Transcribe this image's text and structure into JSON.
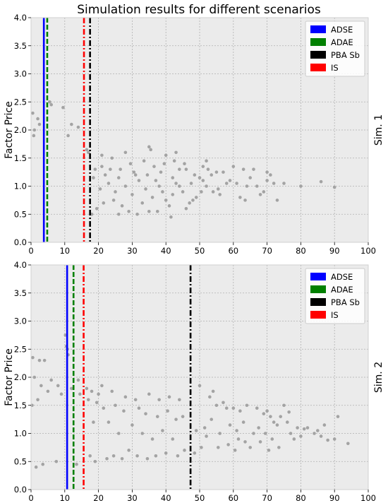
{
  "figure": {
    "title": "Simulation results for different scenarios",
    "background_color": "#ffffff",
    "axes_background_color": "#ebebeb",
    "grid_color": "#b0b0b0",
    "point_color": "#a3a3a3"
  },
  "chart_data": [
    {
      "type": "scatter",
      "side_label": "Sim. 1",
      "xlabel": "",
      "ylabel": "Factor Price",
      "xlim": [
        0,
        100
      ],
      "ylim": [
        0,
        4.0
      ],
      "xticks": [
        0,
        10,
        20,
        30,
        40,
        50,
        60,
        70,
        80,
        90,
        100
      ],
      "yticks": [
        0.0,
        0.5,
        1.0,
        1.5,
        2.0,
        2.5,
        3.0,
        3.5,
        4.0
      ],
      "grid": true,
      "legend_position": "top-right",
      "vlines": [
        {
          "name": "ADSE",
          "x": 3.8,
          "color": "#0000ff",
          "style": "solid"
        },
        {
          "name": "ADAE",
          "x": 4.8,
          "color": "#008000",
          "style": "dashed"
        },
        {
          "name": "PBA Sb",
          "x": 17.5,
          "color": "#000000",
          "style": "dashdot"
        },
        {
          "name": "IS",
          "x": 15.7,
          "color": "#ff0000",
          "style": "dashdot"
        }
      ],
      "legend_order": [
        "ADSE",
        "ADAE",
        "PBA Sb",
        "IS"
      ],
      "points": [
        [
          0.5,
          2.3
        ],
        [
          1.0,
          2.0
        ],
        [
          0.8,
          1.9
        ],
        [
          2.0,
          2.2
        ],
        [
          2.5,
          2.1
        ],
        [
          6.0,
          2.45
        ],
        [
          5.5,
          2.5
        ],
        [
          9.5,
          2.4
        ],
        [
          12.0,
          2.1
        ],
        [
          11.0,
          1.9
        ],
        [
          14.0,
          2.05
        ],
        [
          16.5,
          1.65
        ],
        [
          17.0,
          1.6
        ],
        [
          21.0,
          1.55
        ],
        [
          24.0,
          1.5
        ],
        [
          28.0,
          1.6
        ],
        [
          35.0,
          1.7
        ],
        [
          35.5,
          1.65
        ],
        [
          40.0,
          1.55
        ],
        [
          43.0,
          1.6
        ],
        [
          44.0,
          1.3
        ],
        [
          46.0,
          1.3
        ],
        [
          51.0,
          1.35
        ],
        [
          52.0,
          1.45
        ],
        [
          52.5,
          1.3
        ],
        [
          55.0,
          1.25
        ],
        [
          59.0,
          1.1
        ],
        [
          60.0,
          1.35
        ],
        [
          63.0,
          1.3
        ],
        [
          66.0,
          1.3
        ],
        [
          70.0,
          1.25
        ],
        [
          71.0,
          1.2
        ],
        [
          70.0,
          1.1
        ],
        [
          72.0,
          1.05
        ],
        [
          73.0,
          0.75
        ],
        [
          69.0,
          0.9
        ],
        [
          68.0,
          0.85
        ],
        [
          67.0,
          1.0
        ],
        [
          64.0,
          1.0
        ],
        [
          62.0,
          0.8
        ],
        [
          61.0,
          1.05
        ],
        [
          58.0,
          1.05
        ],
        [
          56.0,
          0.85
        ],
        [
          55.5,
          0.95
        ],
        [
          54.0,
          0.9
        ],
        [
          52.0,
          1.0
        ],
        [
          51.0,
          1.1
        ],
        [
          50.0,
          1.15
        ],
        [
          49.0,
          0.8
        ],
        [
          48.0,
          0.75
        ],
        [
          47.0,
          0.7
        ],
        [
          46.0,
          0.6
        ],
        [
          45.0,
          0.9
        ],
        [
          44.0,
          1.0
        ],
        [
          43.0,
          1.05
        ],
        [
          42.0,
          0.85
        ],
        [
          41.0,
          0.65
        ],
        [
          40.0,
          0.75
        ],
        [
          39.0,
          0.9
        ],
        [
          38.0,
          1.0
        ],
        [
          37.0,
          1.1
        ],
        [
          36.0,
          0.8
        ],
        [
          35.0,
          0.55
        ],
        [
          34.0,
          0.95
        ],
        [
          33.0,
          0.7
        ],
        [
          32.0,
          1.1
        ],
        [
          31.0,
          1.2
        ],
        [
          30.0,
          0.85
        ],
        [
          29.0,
          0.55
        ],
        [
          28.0,
          1.0
        ],
        [
          27.0,
          0.65
        ],
        [
          26.0,
          1.15
        ],
        [
          25.0,
          0.9
        ],
        [
          24.5,
          0.75
        ],
        [
          23.0,
          1.05
        ],
        [
          22.0,
          1.2
        ],
        [
          21.5,
          0.7
        ],
        [
          20.5,
          0.95
        ],
        [
          19.5,
          0.6
        ],
        [
          19.0,
          1.3
        ],
        [
          18.5,
          1.15
        ],
        [
          18.0,
          0.5
        ],
        [
          21.0,
          1.35
        ],
        [
          23.5,
          1.3
        ],
        [
          26.5,
          1.3
        ],
        [
          29.5,
          1.4
        ],
        [
          33.5,
          1.45
        ],
        [
          36.5,
          1.35
        ],
        [
          39.5,
          1.4
        ],
        [
          42.5,
          1.45
        ],
        [
          45.5,
          1.4
        ],
        [
          48.5,
          1.2
        ],
        [
          53.5,
          1.2
        ],
        [
          57.0,
          1.25
        ],
        [
          63.5,
          0.75
        ],
        [
          65.0,
          1.15
        ],
        [
          75.0,
          1.05
        ],
        [
          80.0,
          1.0
        ],
        [
          86.0,
          1.08
        ],
        [
          90.0,
          0.98
        ],
        [
          41.5,
          0.45
        ],
        [
          37.5,
          0.55
        ],
        [
          31.5,
          0.5
        ],
        [
          26.0,
          0.5
        ],
        [
          30.5,
          1.25
        ],
        [
          34.5,
          1.2
        ],
        [
          38.5,
          1.25
        ],
        [
          42.0,
          1.15
        ],
        [
          47.5,
          1.05
        ],
        [
          50.5,
          0.9
        ]
      ]
    },
    {
      "type": "scatter",
      "side_label": "Sim. 2",
      "xlabel": "",
      "ylabel": "Factor Price",
      "xlim": [
        0,
        100
      ],
      "ylim": [
        0,
        4.0
      ],
      "xticks": [
        0,
        10,
        20,
        30,
        40,
        50,
        60,
        70,
        80,
        90,
        100
      ],
      "yticks": [
        0.0,
        0.5,
        1.0,
        1.5,
        2.0,
        2.5,
        3.0,
        3.5,
        4.0
      ],
      "grid": true,
      "legend_position": "top-right",
      "vlines": [
        {
          "name": "ADSE",
          "x": 10.7,
          "color": "#0000ff",
          "style": "solid"
        },
        {
          "name": "ADAE",
          "x": 12.6,
          "color": "#008000",
          "style": "dashed"
        },
        {
          "name": "PBA Sb",
          "x": 47.3,
          "color": "#000000",
          "style": "dashdot"
        },
        {
          "name": "IS",
          "x": 15.6,
          "color": "#ff0000",
          "style": "dashdot"
        }
      ],
      "legend_order": [
        "ADSE",
        "ADAE",
        "PBA Sb",
        "IS"
      ],
      "points": [
        [
          10.2,
          2.75
        ],
        [
          10.5,
          2.55
        ],
        [
          10.8,
          2.5
        ],
        [
          11.0,
          2.4
        ],
        [
          0.5,
          2.35
        ],
        [
          2.5,
          2.3
        ],
        [
          4.0,
          2.3
        ],
        [
          1.0,
          2.0
        ],
        [
          6.0,
          1.95
        ],
        [
          3.0,
          1.85
        ],
        [
          8.0,
          1.85
        ],
        [
          14.0,
          1.95
        ],
        [
          16.5,
          1.8
        ],
        [
          18.0,
          1.75
        ],
        [
          20.0,
          1.7
        ],
        [
          21.0,
          1.85
        ],
        [
          24.0,
          1.75
        ],
        [
          28.0,
          1.65
        ],
        [
          31.0,
          1.6
        ],
        [
          35.0,
          1.7
        ],
        [
          38.0,
          1.6
        ],
        [
          41.0,
          1.65
        ],
        [
          44.0,
          1.6
        ],
        [
          50.0,
          1.85
        ],
        [
          53.0,
          1.65
        ],
        [
          54.0,
          1.75
        ],
        [
          55.0,
          1.5
        ],
        [
          57.0,
          1.55
        ],
        [
          58.0,
          1.45
        ],
        [
          60.0,
          1.45
        ],
        [
          62.0,
          1.4
        ],
        [
          64.0,
          1.5
        ],
        [
          67.0,
          1.45
        ],
        [
          69.0,
          1.35
        ],
        [
          70.0,
          1.4
        ],
        [
          71.0,
          1.3
        ],
        [
          72.0,
          1.2
        ],
        [
          73.0,
          1.15
        ],
        [
          74.0,
          1.3
        ],
        [
          75.0,
          1.5
        ],
        [
          76.0,
          1.2
        ],
        [
          77.0,
          1.0
        ],
        [
          78.0,
          0.9
        ],
        [
          79.0,
          1.1
        ],
        [
          80.0,
          0.95
        ],
        [
          82.0,
          1.1
        ],
        [
          84.0,
          1.0
        ],
        [
          85.0,
          1.05
        ],
        [
          86.0,
          0.95
        ],
        [
          87.0,
          1.15
        ],
        [
          91.0,
          1.3
        ],
        [
          94.0,
          0.82
        ],
        [
          90.0,
          0.9
        ],
        [
          88.0,
          0.88
        ],
        [
          81.0,
          1.08
        ],
        [
          76.5,
          1.38
        ],
        [
          73.5,
          0.75
        ],
        [
          71.5,
          0.9
        ],
        [
          70.5,
          0.7
        ],
        [
          69.5,
          1.0
        ],
        [
          68.0,
          0.85
        ],
        [
          67.5,
          1.1
        ],
        [
          66.0,
          1.0
        ],
        [
          65.0,
          0.75
        ],
        [
          63.5,
          0.85
        ],
        [
          63.0,
          1.2
        ],
        [
          61.5,
          0.9
        ],
        [
          61.0,
          1.05
        ],
        [
          60.5,
          0.7
        ],
        [
          59.0,
          1.15
        ],
        [
          58.5,
          0.8
        ],
        [
          56.0,
          1.0
        ],
        [
          55.5,
          0.75
        ],
        [
          53.5,
          1.25
        ],
        [
          52.0,
          0.95
        ],
        [
          51.5,
          1.1
        ],
        [
          50.5,
          0.75
        ],
        [
          49.0,
          1.05
        ],
        [
          48.5,
          0.65
        ],
        [
          45.0,
          1.3
        ],
        [
          45.5,
          0.7
        ],
        [
          43.0,
          1.25
        ],
        [
          43.5,
          0.6
        ],
        [
          42.0,
          0.9
        ],
        [
          40.5,
          1.4
        ],
        [
          40.0,
          0.65
        ],
        [
          39.0,
          1.05
        ],
        [
          37.5,
          1.3
        ],
        [
          37.0,
          0.6
        ],
        [
          36.0,
          0.9
        ],
        [
          34.0,
          1.35
        ],
        [
          34.5,
          0.55
        ],
        [
          33.0,
          1.0
        ],
        [
          32.0,
          1.45
        ],
        [
          31.5,
          0.6
        ],
        [
          30.0,
          1.15
        ],
        [
          29.0,
          0.7
        ],
        [
          27.5,
          1.4
        ],
        [
          27.0,
          0.55
        ],
        [
          26.0,
          1.0
        ],
        [
          25.0,
          1.5
        ],
        [
          24.5,
          0.6
        ],
        [
          23.0,
          1.2
        ],
        [
          22.5,
          0.55
        ],
        [
          21.5,
          1.45
        ],
        [
          19.5,
          1.55
        ],
        [
          19.0,
          0.5
        ],
        [
          18.5,
          1.2
        ],
        [
          17.5,
          0.6
        ],
        [
          17.0,
          1.6
        ],
        [
          14.5,
          1.7
        ],
        [
          13.5,
          0.45
        ],
        [
          12.0,
          1.8
        ],
        [
          9.0,
          1.7
        ],
        [
          7.5,
          0.5
        ],
        [
          5.0,
          1.75
        ],
        [
          3.5,
          0.45
        ],
        [
          2.0,
          1.6
        ],
        [
          1.5,
          0.4
        ],
        [
          0.3,
          1.5
        ]
      ]
    }
  ]
}
